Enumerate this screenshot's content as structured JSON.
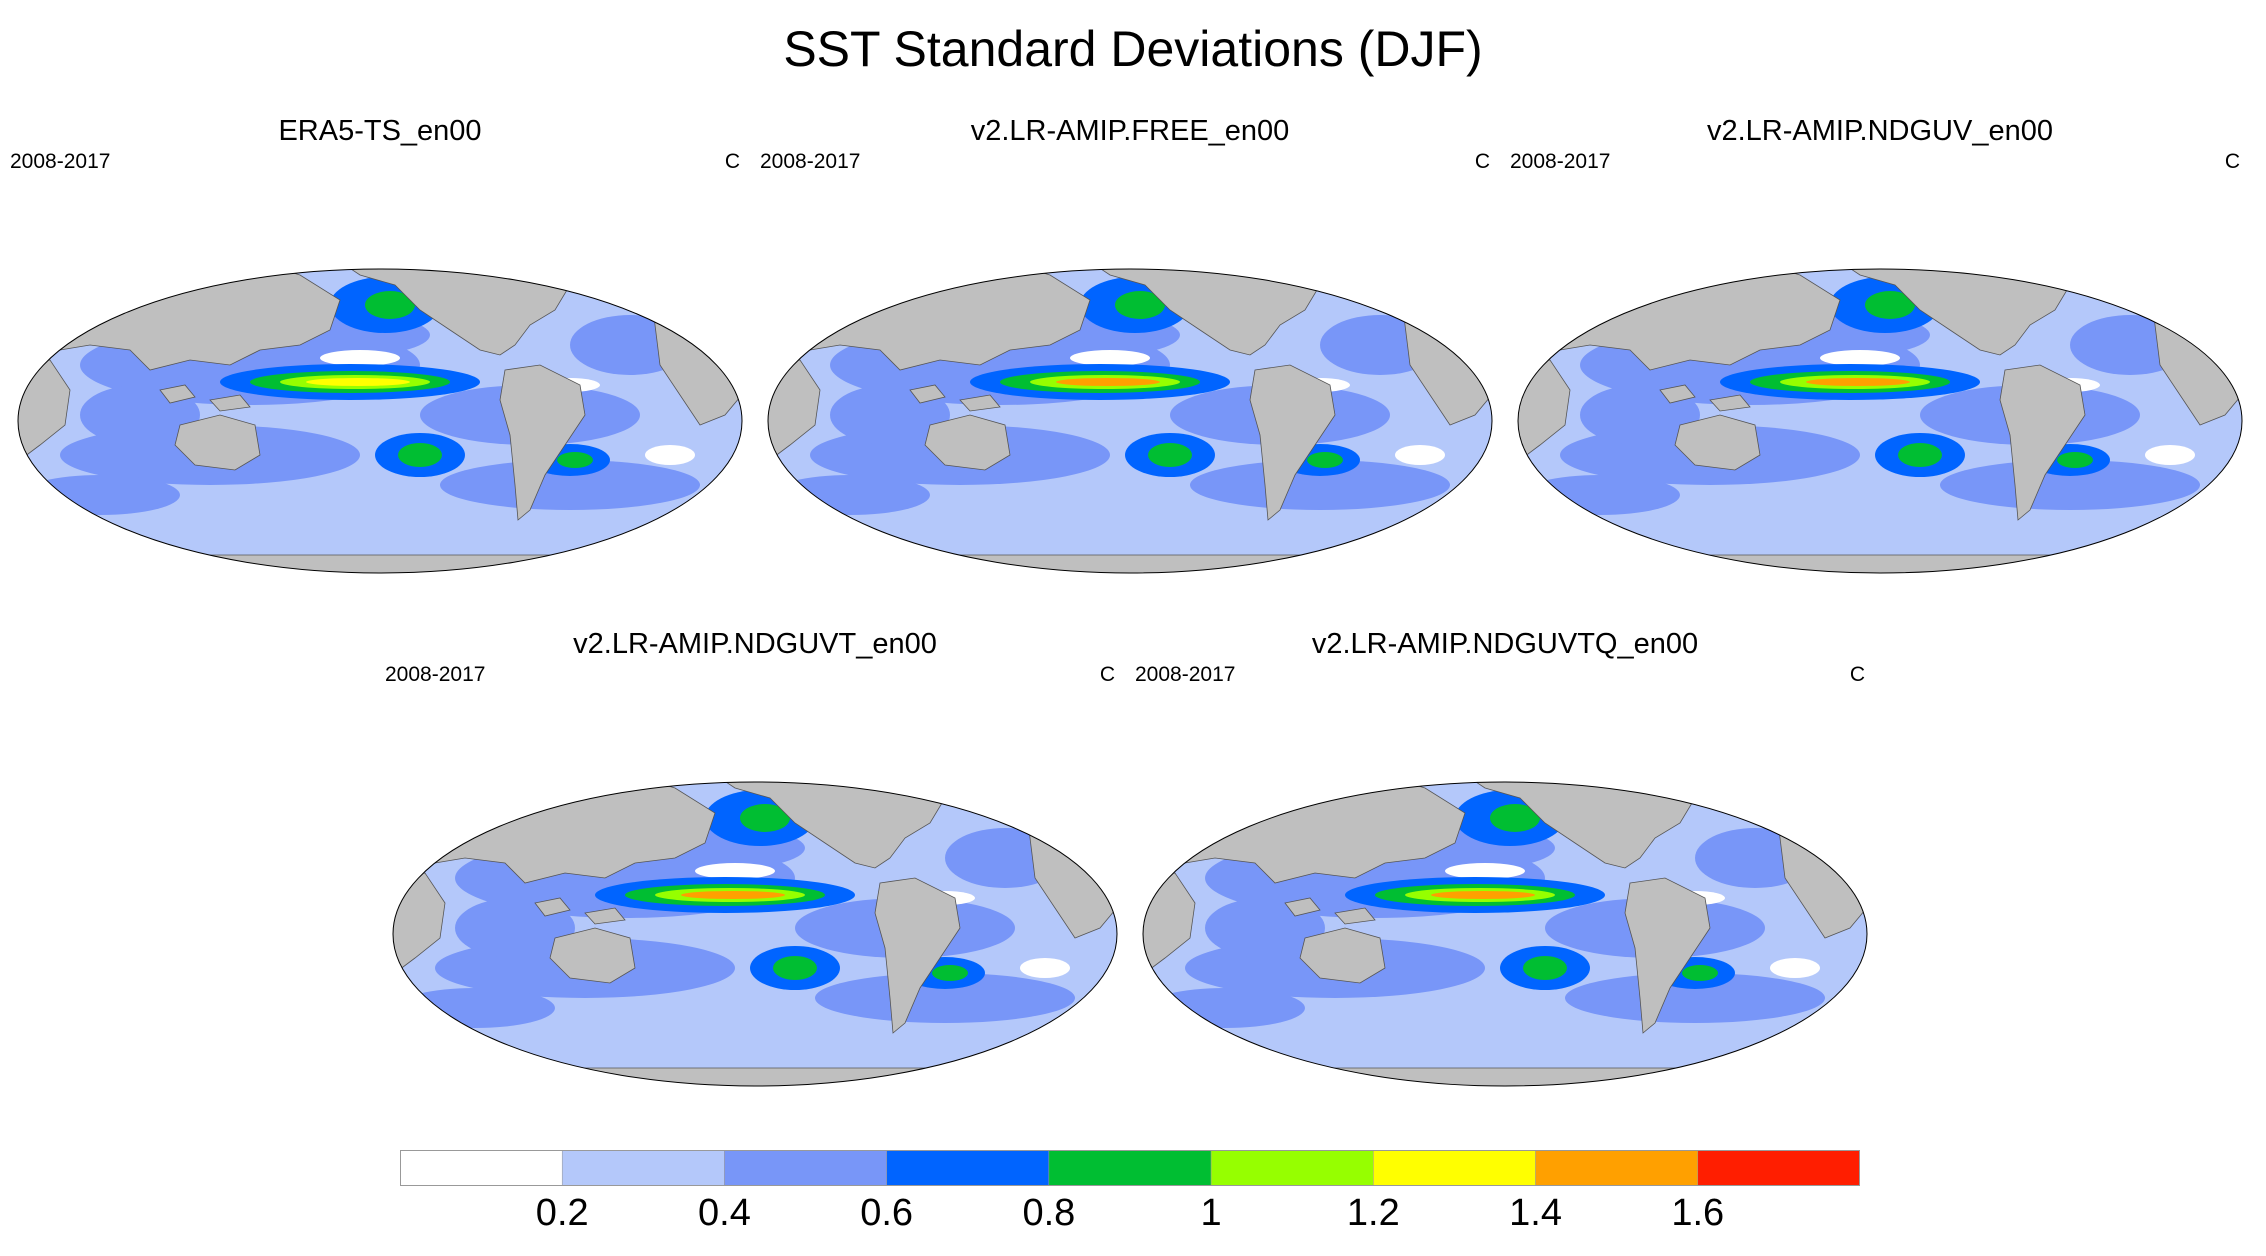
{
  "title": "SST Standard Deviations (DJF)",
  "colors": {
    "land": "#bfbfbf",
    "levels": [
      "#ffffff",
      "#b4c8fa",
      "#7896f8",
      "#0064ff",
      "#00be32",
      "#96ff00",
      "#ffff00",
      "#ffa000",
      "#ff1e00"
    ]
  },
  "panels": [
    {
      "title": "ERA5-TS_en00",
      "period": "2008-2017",
      "units": "C"
    },
    {
      "title": "v2.LR-AMIP.FREE_en00",
      "period": "2008-2017",
      "units": "C"
    },
    {
      "title": "v2.LR-AMIP.NDGUV_en00",
      "period": "2008-2017",
      "units": "C"
    },
    {
      "title": "v2.LR-AMIP.NDGUVT_en00",
      "period": "2008-2017",
      "units": "C"
    },
    {
      "title": "v2.LR-AMIP.NDGUVTQ_en00",
      "period": "2008-2017",
      "units": "C"
    }
  ],
  "colorbar": {
    "labels": [
      "0.2",
      "0.4",
      "0.6",
      "0.8",
      "1",
      "1.2",
      "1.4",
      "1.6"
    ]
  }
}
